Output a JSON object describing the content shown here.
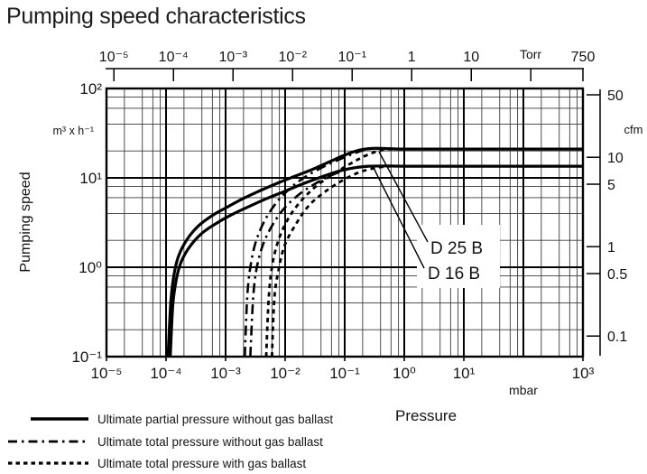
{
  "title": "Pumping speed characteristics",
  "colors": {
    "ink": "#111111",
    "background": "#ffffff"
  },
  "chart_data": {
    "type": "line",
    "title": "Pumping speed characteristics",
    "xlabel": "Pressure",
    "ylabel": "Pumping speed",
    "x_axis": {
      "label": "Pressure",
      "unit": "mbar",
      "scale": "log",
      "min": 1e-05,
      "max": 1000,
      "tick_labels": [
        "10⁻⁵",
        "10⁻⁴",
        "10⁻³",
        "10⁻²",
        "10⁻¹",
        "10⁰",
        "10¹",
        "10³"
      ],
      "tick_values": [
        1e-05,
        0.0001,
        0.001,
        0.01,
        0.1,
        1,
        10,
        1000
      ]
    },
    "x_axis_top": {
      "unit": "Torr",
      "scale": "log",
      "mbar_per_torr": 1.3332,
      "tick_labels": [
        "10⁻⁵",
        "10⁻⁴",
        "10⁻³",
        "10⁻²",
        "10⁻¹",
        "1",
        "10",
        "750"
      ],
      "tick_values_torr": [
        1e-05,
        0.0001,
        0.001,
        0.01,
        0.1,
        1,
        10,
        750
      ],
      "unit_tick_torr": 100
    },
    "y_axis": {
      "label": "Pumping speed",
      "unit": "m³ x h⁻¹",
      "scale": "log",
      "min": 0.1,
      "max": 100,
      "tick_labels": [
        "10²",
        "10¹",
        "10⁰",
        "10⁻¹"
      ],
      "tick_values": [
        100,
        10,
        1,
        0.1
      ]
    },
    "y_axis_right": {
      "unit": "cfm",
      "m3h_per_cfm": 1.699,
      "tick_labels": [
        "50",
        "10",
        "5",
        "1",
        "0.5",
        "0.1"
      ],
      "tick_values": [
        50,
        10,
        5,
        1,
        0.5,
        0.1
      ]
    },
    "grid": {
      "subdivisions": [
        2,
        4,
        6,
        8
      ],
      "on": true
    },
    "annotations": [
      {
        "label": "D 25 B"
      },
      {
        "label": "D 16 B"
      }
    ],
    "series": [
      {
        "name": "D 25 B",
        "variant": "Ultimate partial pressure without gas ballast",
        "style": "solid",
        "points": [
          [
            0.000108,
            0.1
          ],
          [
            0.00012,
            0.4
          ],
          [
            0.000135,
            0.8
          ],
          [
            0.00016,
            1.3
          ],
          [
            0.00022,
            2.0
          ],
          [
            0.00035,
            2.9
          ],
          [
            0.0006,
            3.8
          ],
          [
            0.001,
            4.6
          ],
          [
            0.002,
            5.9
          ],
          [
            0.004,
            7.3
          ],
          [
            0.008,
            8.9
          ],
          [
            0.015,
            10.5
          ],
          [
            0.03,
            12.6
          ],
          [
            0.06,
            15.5
          ],
          [
            0.1,
            18.0
          ],
          [
            0.18,
            20.5
          ],
          [
            0.3,
            21.4
          ],
          [
            0.6,
            21.2
          ],
          [
            1,
            21.0
          ],
          [
            10,
            21.0
          ],
          [
            100,
            21.0
          ],
          [
            1000,
            21.0
          ]
        ]
      },
      {
        "name": "D 16 B",
        "variant": "Ultimate partial pressure without gas ballast",
        "style": "solid",
        "points": [
          [
            0.000118,
            0.1
          ],
          [
            0.00013,
            0.38
          ],
          [
            0.00015,
            0.75
          ],
          [
            0.00018,
            1.15
          ],
          [
            0.00025,
            1.7
          ],
          [
            0.0004,
            2.4
          ],
          [
            0.0007,
            3.1
          ],
          [
            0.0012,
            3.8
          ],
          [
            0.0025,
            4.8
          ],
          [
            0.005,
            5.9
          ],
          [
            0.01,
            7.1
          ],
          [
            0.02,
            8.6
          ],
          [
            0.04,
            10.2
          ],
          [
            0.08,
            11.9
          ],
          [
            0.15,
            13.0
          ],
          [
            0.25,
            13.5
          ],
          [
            0.5,
            13.6
          ],
          [
            1,
            13.5
          ],
          [
            10,
            13.5
          ],
          [
            100,
            13.5
          ],
          [
            1000,
            13.5
          ]
        ]
      },
      {
        "name": "D 25 B",
        "variant": "Ultimate total pressure without gas ballast",
        "style": "dashdot",
        "points": [
          [
            0.0021,
            0.1
          ],
          [
            0.0023,
            0.45
          ],
          [
            0.0026,
            1.0
          ],
          [
            0.0032,
            1.9
          ],
          [
            0.0045,
            3.3
          ],
          [
            0.007,
            5.2
          ],
          [
            0.012,
            7.6
          ],
          [
            0.022,
            10.3
          ],
          [
            0.045,
            13.4
          ],
          [
            0.08,
            16.0
          ],
          [
            0.15,
            19.0
          ],
          [
            0.25,
            21.0
          ],
          [
            0.4,
            21.3
          ]
        ]
      },
      {
        "name": "D 16 B",
        "variant": "Ultimate total pressure without gas ballast",
        "style": "dashdot",
        "points": [
          [
            0.0026,
            0.1
          ],
          [
            0.0029,
            0.45
          ],
          [
            0.0033,
            0.95
          ],
          [
            0.0042,
            1.75
          ],
          [
            0.006,
            2.9
          ],
          [
            0.0095,
            4.5
          ],
          [
            0.017,
            6.5
          ],
          [
            0.032,
            8.6
          ],
          [
            0.062,
            10.8
          ],
          [
            0.12,
            12.6
          ],
          [
            0.2,
            13.4
          ],
          [
            0.35,
            13.6
          ]
        ]
      },
      {
        "name": "D 25 B",
        "variant": "Ultimate total pressure with gas ballast",
        "style": "dashed",
        "points": [
          [
            0.0048,
            0.1
          ],
          [
            0.0053,
            0.45
          ],
          [
            0.006,
            1.0
          ],
          [
            0.0075,
            1.9
          ],
          [
            0.011,
            3.4
          ],
          [
            0.018,
            5.4
          ],
          [
            0.032,
            7.9
          ],
          [
            0.06,
            10.7
          ],
          [
            0.12,
            14.2
          ],
          [
            0.22,
            17.6
          ],
          [
            0.4,
            20.3
          ],
          [
            0.7,
            21.2
          ]
        ]
      },
      {
        "name": "D 16 B",
        "variant": "Ultimate total pressure with gas ballast",
        "style": "dashed",
        "points": [
          [
            0.006,
            0.1
          ],
          [
            0.0066,
            0.45
          ],
          [
            0.0078,
            0.95
          ],
          [
            0.0098,
            1.75
          ],
          [
            0.015,
            3.0
          ],
          [
            0.025,
            4.9
          ],
          [
            0.047,
            7.0
          ],
          [
            0.09,
            9.3
          ],
          [
            0.18,
            11.6
          ],
          [
            0.35,
            13.0
          ],
          [
            0.6,
            13.5
          ]
        ]
      }
    ]
  },
  "legend": [
    {
      "style": "solid",
      "label": "Ultimate partial pressure without gas ballast"
    },
    {
      "style": "dashdot",
      "label": "Ultimate total pressure without gas ballast"
    },
    {
      "style": "dashed",
      "label": "Ultimate total pressure with gas ballast"
    }
  ]
}
